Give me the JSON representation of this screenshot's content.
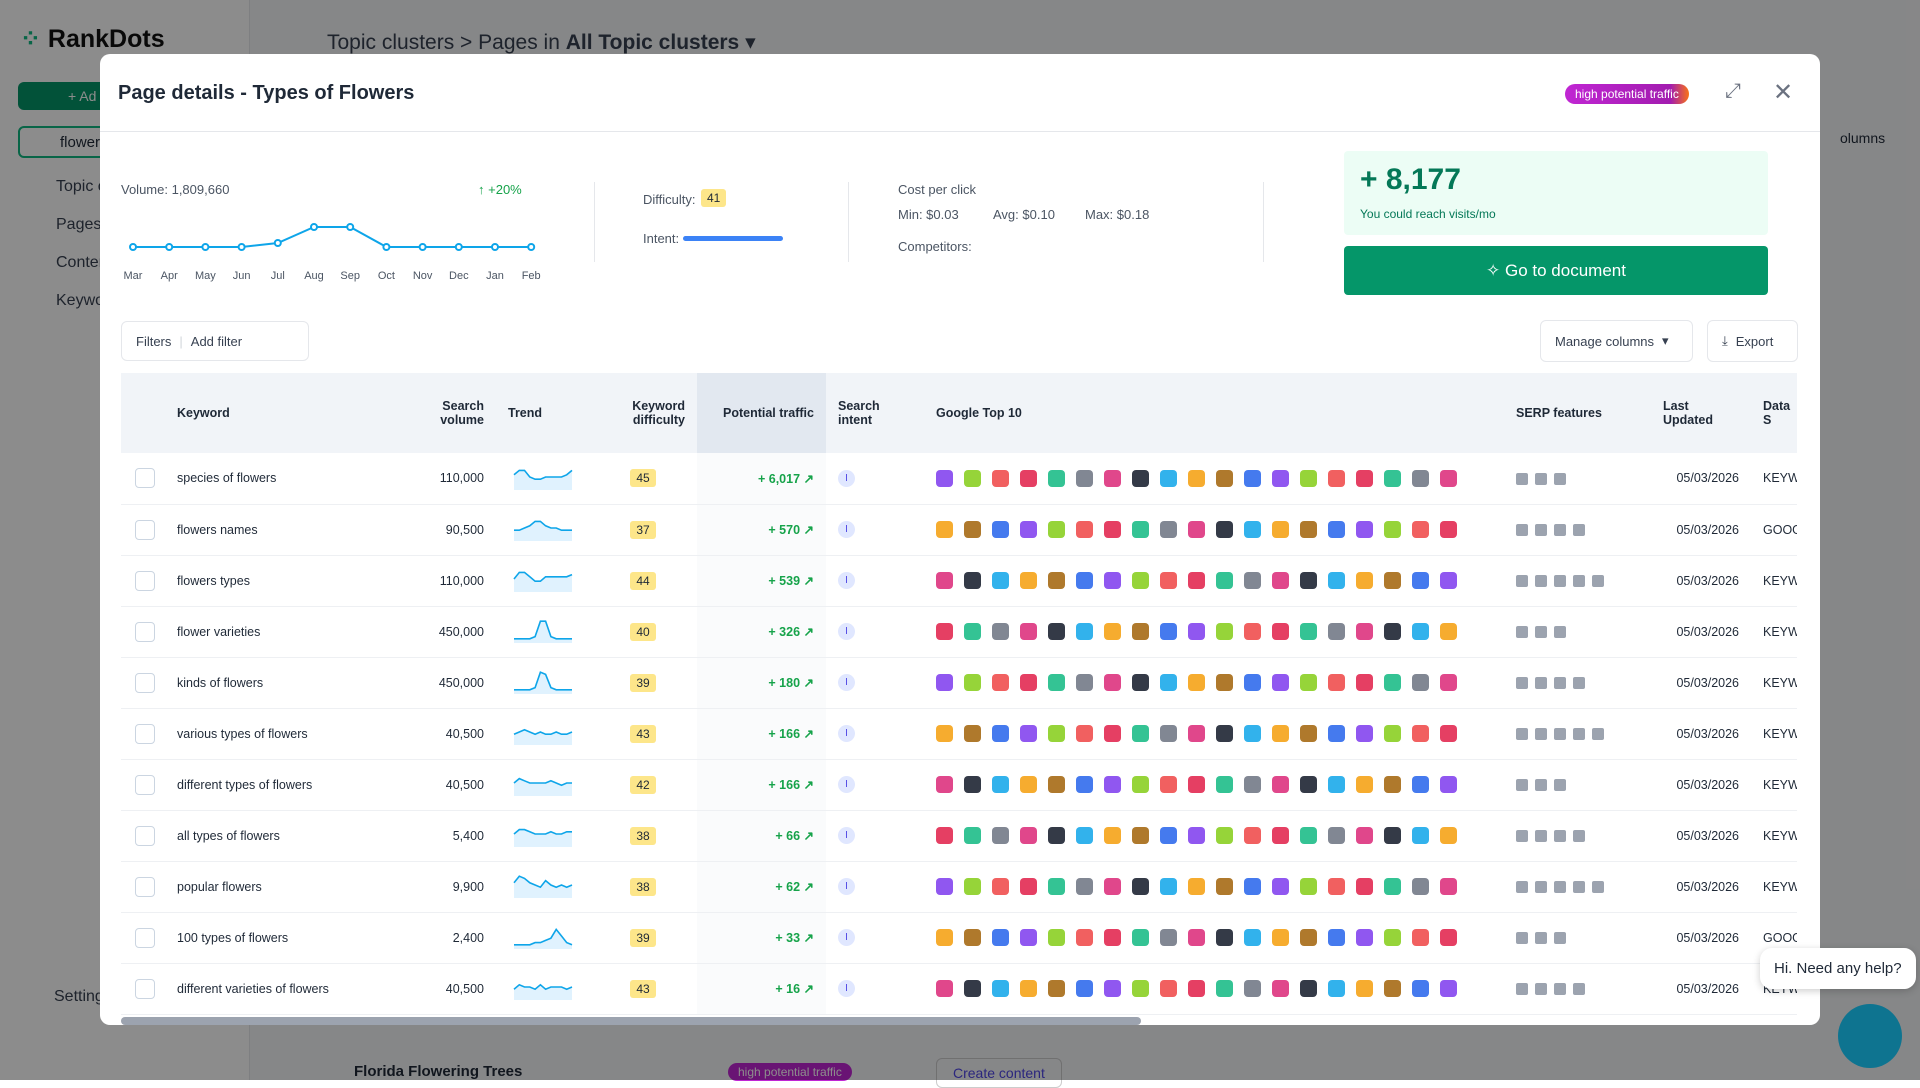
{
  "app": {
    "logo": "RankDots",
    "add_button": "+ Ad",
    "search": "flowers",
    "nav": [
      "Topic c",
      "Pages",
      "Conter",
      "Keywo"
    ],
    "settings": "Setting",
    "breadcrumb": {
      "root": "Topic clusters",
      "pages_in": "Pages in",
      "scope": "All Topic clusters"
    },
    "columns_btn": "olumns",
    "bg_row": {
      "title": "Florida Flowering Trees",
      "badge": "high potential traffic",
      "action": "Create content"
    },
    "chat": "Hi. Need any help?"
  },
  "modal": {
    "title": "Page details - Types of Flowers",
    "badge": "high potential traffic",
    "volume": {
      "label": "Volume: 1,809,660",
      "change": "+20%",
      "months": [
        "Mar",
        "Apr",
        "May",
        "Jun",
        "Jul",
        "Aug",
        "Sep",
        "Oct",
        "Nov",
        "Dec",
        "Jan",
        "Feb"
      ],
      "values": [
        3,
        3,
        3,
        3,
        4,
        8,
        8,
        3,
        3,
        3,
        3,
        3
      ],
      "ylim": [
        0,
        10
      ]
    },
    "difficulty_label": "Difficulty:",
    "difficulty": 41,
    "intent_label": "Intent:",
    "cpc": {
      "label": "Cost per click",
      "min": "Min: $0.03",
      "avg": "Avg: $0.10",
      "max": "Max: $0.18",
      "competitors": "Competitors:"
    },
    "reach": {
      "value": "+ 8,177",
      "text": "You could reach visits/mo"
    },
    "go_button": "Go to document",
    "filters": "Filters",
    "add_filter": "Add filter",
    "manage_columns": "Manage columns",
    "export": "Export",
    "table": {
      "columns": [
        "Keyword",
        "Search volume",
        "Trend",
        "Keyword difficulty",
        "Potential traffic",
        "Search intent",
        "Google Top 10",
        "SERP features",
        "Last Updated",
        "Data S"
      ],
      "trend_ylim": [
        0,
        10
      ],
      "rows": [
        {
          "keyword": "species of flowers",
          "volume": "110,000",
          "trend": [
            6,
            8,
            8,
            5,
            4,
            4,
            5,
            5,
            5,
            5,
            6,
            8
          ],
          "difficulty": 45,
          "traffic": "+ 6,017",
          "intent": "I",
          "updated": "05/03/2026",
          "source": "KEYW"
        },
        {
          "keyword": "flowers names",
          "volume": "90,500",
          "trend": [
            4,
            4,
            5,
            6,
            8,
            8,
            6,
            5,
            5,
            4,
            4,
            4
          ],
          "difficulty": 37,
          "traffic": "+ 570",
          "intent": "I",
          "updated": "05/03/2026",
          "source": "GOOG"
        },
        {
          "keyword": "flowers types",
          "volume": "110,000",
          "trend": [
            5,
            8,
            8,
            6,
            4,
            4,
            6,
            6,
            6,
            6,
            6,
            7
          ],
          "difficulty": 44,
          "traffic": "+ 539",
          "intent": "I",
          "updated": "05/03/2026",
          "source": "KEYW"
        },
        {
          "keyword": "flower varieties",
          "volume": "450,000",
          "trend": [
            1,
            1,
            1,
            1,
            2,
            9,
            9,
            2,
            1,
            1,
            1,
            1
          ],
          "difficulty": 40,
          "traffic": "+ 326",
          "intent": "I",
          "updated": "05/03/2026",
          "source": "KEYW"
        },
        {
          "keyword": "kinds of flowers",
          "volume": "450,000",
          "trend": [
            1,
            1,
            1,
            1,
            2,
            9,
            8,
            2,
            1,
            1,
            1,
            1
          ],
          "difficulty": 39,
          "traffic": "+ 180",
          "intent": "I",
          "updated": "05/03/2026",
          "source": "KEYW"
        },
        {
          "keyword": "various types of flowers",
          "volume": "40,500",
          "trend": [
            4,
            5,
            6,
            5,
            4,
            5,
            4,
            4,
            5,
            4,
            4,
            5
          ],
          "difficulty": 43,
          "traffic": "+ 166",
          "intent": "I",
          "updated": "05/03/2026",
          "source": "KEYW"
        },
        {
          "keyword": "different types of flowers",
          "volume": "40,500",
          "trend": [
            5,
            7,
            6,
            5,
            5,
            5,
            5,
            6,
            5,
            4,
            5,
            5
          ],
          "difficulty": 42,
          "traffic": "+ 166",
          "intent": "I",
          "updated": "05/03/2026",
          "source": "KEYW"
        },
        {
          "keyword": "all types of flowers",
          "volume": "5,400",
          "trend": [
            5,
            7,
            7,
            6,
            5,
            5,
            5,
            6,
            5,
            5,
            6,
            6
          ],
          "difficulty": 38,
          "traffic": "+ 66",
          "intent": "I",
          "updated": "05/03/2026",
          "source": "KEYW"
        },
        {
          "keyword": "popular flowers",
          "volume": "9,900",
          "trend": [
            6,
            9,
            8,
            6,
            5,
            4,
            7,
            5,
            4,
            5,
            4,
            5
          ],
          "difficulty": 38,
          "traffic": "+ 62",
          "intent": "I",
          "updated": "05/03/2026",
          "source": "KEYW"
        },
        {
          "keyword": "100 types of flowers",
          "volume": "2,400",
          "trend": [
            1,
            1,
            1,
            1,
            2,
            2,
            3,
            4,
            8,
            5,
            2,
            1
          ],
          "difficulty": 39,
          "traffic": "+ 33",
          "intent": "I",
          "updated": "05/03/2026",
          "source": "GOOG"
        },
        {
          "keyword": "different varieties of flowers",
          "volume": "40,500",
          "trend": [
            4,
            6,
            5,
            5,
            4,
            6,
            4,
            5,
            5,
            5,
            4,
            5
          ],
          "difficulty": 43,
          "traffic": "+ 16",
          "intent": "I",
          "updated": "05/03/2026",
          "source": "KEYW"
        }
      ]
    }
  }
}
